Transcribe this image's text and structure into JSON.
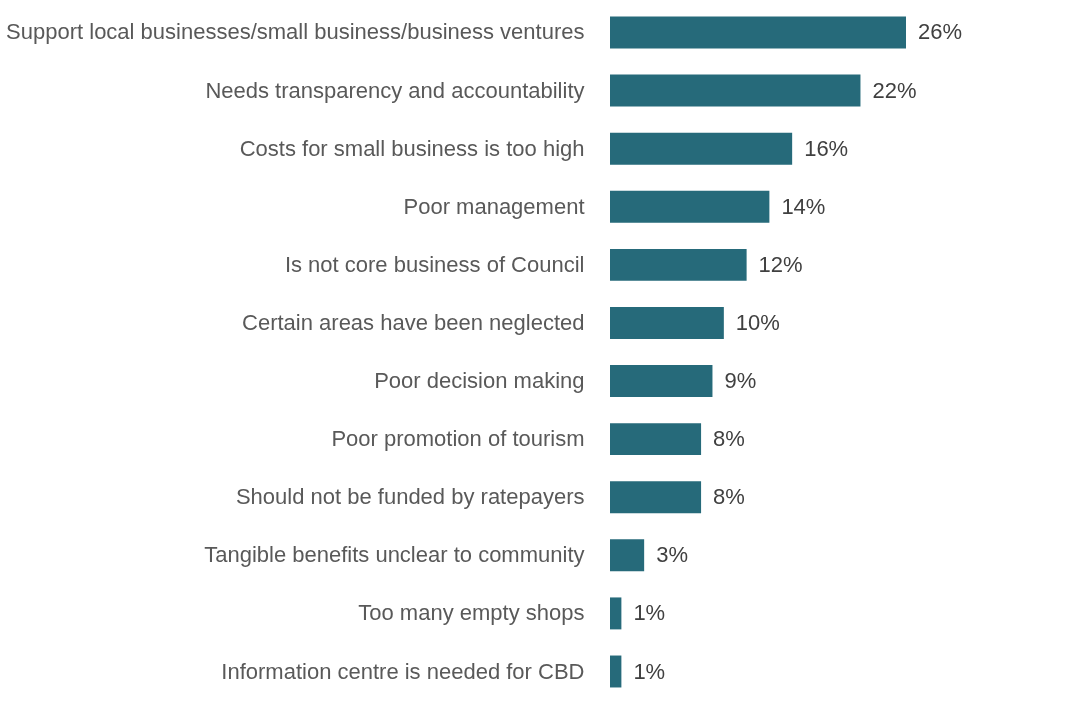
{
  "chart_data": {
    "type": "bar",
    "orientation": "horizontal",
    "categories": [
      "Support local businesses/small business/business ventures",
      "Needs transparency and accountability",
      "Costs for small business is too high",
      "Poor management",
      "Is not core business of Council",
      "Certain areas have been neglected",
      "Poor decision making",
      "Poor promotion of tourism",
      "Should not be funded by ratepayers",
      "Tangible benefits unclear to community",
      "Too many empty shops",
      "Information centre is needed for CBD"
    ],
    "values": [
      26,
      22,
      16,
      14,
      12,
      10,
      9,
      8,
      8,
      3,
      1,
      1
    ],
    "value_labels": [
      "26%",
      "22%",
      "16%",
      "14%",
      "12%",
      "10%",
      "9%",
      "8%",
      "8%",
      "3%",
      "1%",
      "1%"
    ],
    "color": "#266a7a"
  }
}
